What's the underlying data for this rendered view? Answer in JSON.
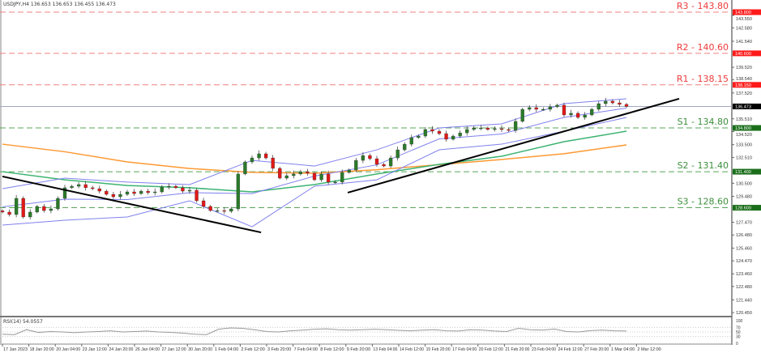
{
  "header": {
    "symbol_line": "USDJPY,H4 136.653 136.653 136.455 136.473"
  },
  "rsi": {
    "label": "RSI(14) 54.0557",
    "levels": [
      "100",
      "70",
      "50",
      "30",
      "0"
    ]
  },
  "colors": {
    "bull": "#2a7a2a",
    "bear": "#e01818",
    "resistance": "#ee3b3b",
    "support": "#3d8f3d",
    "ma_fast": "#3cb371",
    "ma_slow": "#ff9933",
    "bollinger": "#8080ee",
    "trendline": "#000000",
    "current_price": "#a0a8c0"
  },
  "chart_data": {
    "type": "candlestick",
    "title": "USDJPY,H4",
    "ylim": [
      120.2,
      144.6
    ],
    "grid": false,
    "y_ticks": [
      "143.550",
      "142.580",
      "141.540",
      "139.520",
      "138.540",
      "137.520",
      "135.510",
      "134.520",
      "133.500",
      "132.510",
      "130.500",
      "129.480",
      "127.470",
      "126.480",
      "125.460",
      "124.470",
      "123.460",
      "122.480",
      "121.440",
      "120.450"
    ],
    "x_ticks": [
      "17 Jan 2023",
      "18 Jan 20:00",
      "20 Jan 04:00",
      "23 Jan 12:00",
      "24 Jan 20:00",
      "26 Jan 04:00",
      "27 Jan 12:00",
      "30 Jan 20:00",
      "1 Feb 04:00",
      "2 Feb 12:00",
      "3 Feb 20:00",
      "7 Feb 04:00",
      "8 Feb 12:00",
      "9 Feb 20:00",
      "13 Feb 04:00",
      "14 Feb 12:00",
      "15 Feb 20:00",
      "17 Feb 04:00",
      "20 Feb 12:00",
      "21 Feb 20:00",
      "23 Feb 04:00",
      "24 Feb 12:00",
      "27 Feb 20:00",
      "1 Mar 04:00",
      "2 Mar 12:00"
    ],
    "closes": [
      128.26,
      128.07,
      129.33,
      127.88,
      128.26,
      128.7,
      128.38,
      128.51,
      129.33,
      130.15,
      130.27,
      130.4,
      130.15,
      130.08,
      129.89,
      129.64,
      129.45,
      129.64,
      129.83,
      129.7,
      129.89,
      129.77,
      129.83,
      130.21,
      130.27,
      130.15,
      129.89,
      129.96,
      129.14,
      128.7,
      128.38,
      128.38,
      128.32,
      128.51,
      131.22,
      132.16,
      132.47,
      132.79,
      132.47,
      131.66,
      130.9,
      131.09,
      131.22,
      131.4,
      131.28,
      130.77,
      131.22,
      130.59,
      130.59,
      131.34,
      131.53,
      132.28,
      132.66,
      132.41,
      131.97,
      131.84,
      132.47,
      133.1,
      133.54,
      134.05,
      134.17,
      134.68,
      134.55,
      134.36,
      133.92,
      134.17,
      134.42,
      134.68,
      134.8,
      134.8,
      134.68,
      134.74,
      134.68,
      134.61,
      135.31,
      136.25,
      136.38,
      136.25,
      136.25,
      136.44,
      136.57,
      135.81,
      135.94,
      135.62,
      135.81,
      136.25,
      136.69,
      136.88,
      136.75,
      136.63,
      136.473
    ],
    "current_price": 136.473,
    "levels": [
      {
        "name": "R3",
        "label": "R3 - 143.80",
        "value": 143.8,
        "axis_label": "143.800",
        "kind": "resistance"
      },
      {
        "name": "R2",
        "label": "R2 - 140.60",
        "value": 140.6,
        "axis_label": "140.600",
        "kind": "resistance"
      },
      {
        "name": "R1",
        "label": "R1 - 138.15",
        "value": 138.15,
        "axis_label": "138.150",
        "kind": "resistance"
      },
      {
        "name": "S1",
        "label": "S1 - 134.80",
        "value": 134.8,
        "axis_label": "134.800",
        "kind": "support"
      },
      {
        "name": "S2",
        "label": "S2 - 131.40",
        "value": 131.4,
        "axis_label": "131.400",
        "kind": "support"
      },
      {
        "name": "S3",
        "label": "S3 - 128.60",
        "value": 128.6,
        "axis_label": "128.600",
        "kind": "support"
      }
    ],
    "current_price_label": "136.473",
    "ma_slow": [
      133.54,
      132.95,
      132.16,
      131.65,
      131.35,
      131.28,
      131.55,
      131.95,
      132.35,
      132.8,
      133.48
    ],
    "ma_fast": [
      131.4,
      130.77,
      130.33,
      130.15,
      129.83,
      130.4,
      131.22,
      131.97,
      132.6,
      133.73,
      134.55
    ],
    "bollinger_upper": [
      130.08,
      130.9,
      130.59,
      130.4,
      132.28,
      131.84,
      133.1,
      134.8,
      135.12,
      136.69,
      137.07
    ],
    "bollinger_lower": [
      127.25,
      127.63,
      127.88,
      129.14,
      127.12,
      130.27,
      130.77,
      133.1,
      133.54,
      134.55,
      135.62
    ],
    "trendlines": [
      {
        "from": [
          0,
          131.03
        ],
        "to": [
          37.3,
          126.68
        ]
      },
      {
        "from": [
          49.8,
          129.77
        ],
        "to": [
          97.6,
          137.07
        ]
      }
    ],
    "rsi_values": [
      40,
      38,
      60,
      48,
      52,
      50,
      47,
      50,
      52,
      55,
      50,
      52,
      54,
      50,
      48,
      45,
      40,
      38,
      62,
      68,
      66,
      60,
      52,
      50,
      55,
      58,
      62,
      64,
      60,
      58,
      60,
      62,
      60,
      57,
      55,
      58,
      60,
      55,
      54,
      60,
      58,
      54,
      52,
      66,
      60,
      58,
      63,
      52,
      50,
      56,
      58,
      55,
      54
    ]
  }
}
